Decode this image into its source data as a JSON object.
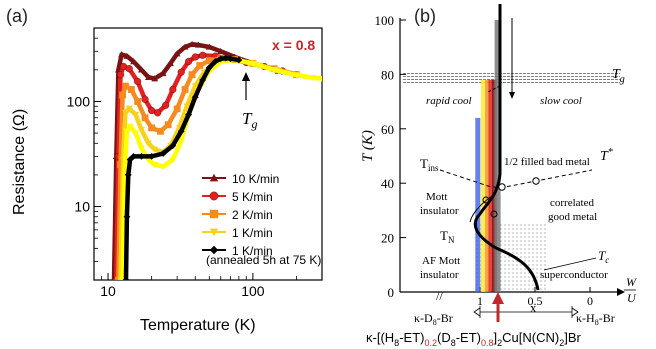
{
  "chart_data": [
    {
      "type": "line",
      "panel_label": "(a)",
      "annotation_x": "x = 0.8",
      "annotation_color": "#c0282c",
      "tg_label": "T",
      "tg_sub": "g",
      "xlabel": "Temperature (K)",
      "ylabel": "Resistance (Ω)",
      "xscale": "log",
      "yscale": "log",
      "xlim": [
        8,
        300
      ],
      "ylim": [
        2,
        500
      ],
      "xticks": [
        {
          "v": 10,
          "label": "10"
        },
        {
          "v": 100,
          "label": "100"
        }
      ],
      "yticks": [
        {
          "v": 10,
          "label": "10"
        },
        {
          "v": 100,
          "label": "100"
        }
      ],
      "legend_position": "lower-right",
      "legend_note": "(annealed 5h at 75 K)",
      "series": [
        {
          "name": "10 K/min",
          "marker": "triangle",
          "color": "#7a1414",
          "x": [
            11.0,
            11.4,
            11.8,
            12.4,
            13.5,
            15,
            17,
            19,
            21,
            24,
            27,
            30,
            34,
            38,
            42,
            50,
            60,
            75,
            100,
            150,
            200
          ],
          "y": [
            2,
            30,
            200,
            280,
            270,
            240,
            200,
            170,
            165,
            185,
            230,
            285,
            330,
            350,
            345,
            330,
            300,
            265,
            230,
            195,
            180
          ]
        },
        {
          "name": "5 K/min",
          "marker": "circle",
          "color": "#e52020",
          "x": [
            11.4,
            11.8,
            12.2,
            12.8,
            14,
            16,
            18,
            20,
            22,
            25,
            28,
            32,
            36,
            40,
            45,
            55,
            70,
            90,
            120,
            160,
            200
          ],
          "y": [
            2,
            30,
            180,
            215,
            205,
            155,
            105,
            82,
            78,
            92,
            130,
            190,
            240,
            265,
            275,
            270,
            255,
            235,
            215,
            195,
            180
          ]
        },
        {
          "name": "2 K/min",
          "marker": "square",
          "color": "#f58a1f",
          "x": [
            11.8,
            12.2,
            12.6,
            13.2,
            14.5,
            16,
            18,
            20,
            23,
            26,
            30,
            34,
            38,
            43,
            50,
            60,
            75,
            100,
            140,
            200
          ],
          "y": [
            2,
            25,
            115,
            140,
            130,
            100,
            70,
            56,
            52,
            60,
            85,
            130,
            180,
            220,
            245,
            255,
            250,
            230,
            205,
            180
          ]
        },
        {
          "name": "1 K/min",
          "marker": "triangle-down",
          "color": "#f7d21a",
          "x": [
            12.2,
            12.7,
            13.2,
            14,
            15.5,
            17,
            19,
            21,
            24,
            27,
            31,
            35,
            40,
            46,
            55,
            65,
            80,
            110,
            150,
            200,
            260
          ],
          "y": [
            2,
            28,
            78,
            86,
            75,
            54,
            40,
            35,
            33,
            38,
            56,
            90,
            140,
            190,
            230,
            250,
            245,
            220,
            195,
            178,
            168
          ]
        },
        {
          "name": "1 K/min",
          "marker": "triangle-down",
          "color": "#ffff00",
          "x": [
            12.6,
            13.0,
            13.5,
            14.2,
            15.5,
            17,
            19,
            21,
            24,
            28,
            32,
            36,
            42,
            50,
            60,
            75,
            100,
            140,
            200,
            260,
            300
          ],
          "y": [
            2,
            20,
            52,
            58,
            50,
            36,
            28,
            25,
            24,
            28,
            42,
            75,
            130,
            195,
            240,
            250,
            230,
            200,
            178,
            168,
            165
          ]
        },
        {
          "name": "1 K/min",
          "marker": "diamond",
          "color": "#000000",
          "x": [
            13.3,
            13.5,
            13.8,
            14.2,
            15,
            17,
            20,
            24,
            28,
            32,
            36,
            40,
            45,
            50,
            55,
            60,
            65,
            70,
            80
          ],
          "y": [
            2,
            8,
            20,
            28,
            30,
            30,
            30,
            32,
            38,
            52,
            75,
            110,
            160,
            210,
            240,
            255,
            258,
            255,
            248
          ]
        }
      ]
    },
    {
      "type": "phase_diagram",
      "panel_label": "(b)",
      "ylabel": "T (K)",
      "xlabel": "W / U",
      "xlabel_num": "W",
      "xlabel_den": "U",
      "x_label": "x",
      "ylim": [
        0,
        100
      ],
      "yticks": [
        0,
        20,
        40,
        60,
        80,
        100
      ],
      "xticks": [
        {
          "v": 1,
          "label": "1"
        },
        {
          "v": 0.5,
          "label": "0.5"
        },
        {
          "v": 0,
          "label": "0"
        }
      ],
      "axis_break": "//",
      "labels": {
        "tg_label": "T",
        "tg_sub": "g",
        "rapid_cool": "rapid cool",
        "slow_cool": "slow cool",
        "tins_label": "T",
        "tins_sub": "ins",
        "bad_metal": "1/2 filled bad metal",
        "tstar_label": "T",
        "tstar_sup": "*",
        "mott_insulator_1": "Mott",
        "mott_insulator_2": "insulator",
        "correlated_1": "correlated",
        "correlated_2": "good metal",
        "tn_label": "T",
        "tn_sub": "N",
        "tc_label": "T",
        "tc_sub": "c",
        "af_mott_1": "AF Mott",
        "af_mott_2": "insulator",
        "superconductor": "superconductor",
        "left_compound": "κ-D",
        "left_compound_sub": "8",
        "left_compound_end": "-Br",
        "right_compound": "κ-H",
        "right_compound_sub": "8",
        "right_compound_end": "-Br"
      },
      "formula": {
        "p1": "κ-[(H",
        "s1": "8",
        "p2": "-ET)",
        "s2": "0.2",
        "p3": "(D",
        "s3": "8",
        "p4": "-ET)",
        "s4": "0.8",
        "p5": "]",
        "s5": "2",
        "p6": "Cu[N(CN)",
        "s6": "2",
        "p7": "]Br"
      },
      "formula_accent": "#c0282c",
      "tg_level": 78,
      "tins_point": [
        0.85,
        38
      ],
      "tstar_point": [
        0.62,
        42
      ],
      "bars": [
        {
          "color": "#4060e8",
          "x": 1.02,
          "top": 64
        },
        {
          "color": "#f7e830",
          "x": 0.97,
          "top": 78
        },
        {
          "color": "#f58a1f",
          "x": 0.93,
          "top": 78
        },
        {
          "color": "#e52020",
          "x": 0.9,
          "top": 78
        },
        {
          "color": "#7a1414",
          "x": 0.87,
          "top": 78
        },
        {
          "color": "#7a7a7a",
          "x": 0.84,
          "top": 100
        }
      ]
    }
  ]
}
